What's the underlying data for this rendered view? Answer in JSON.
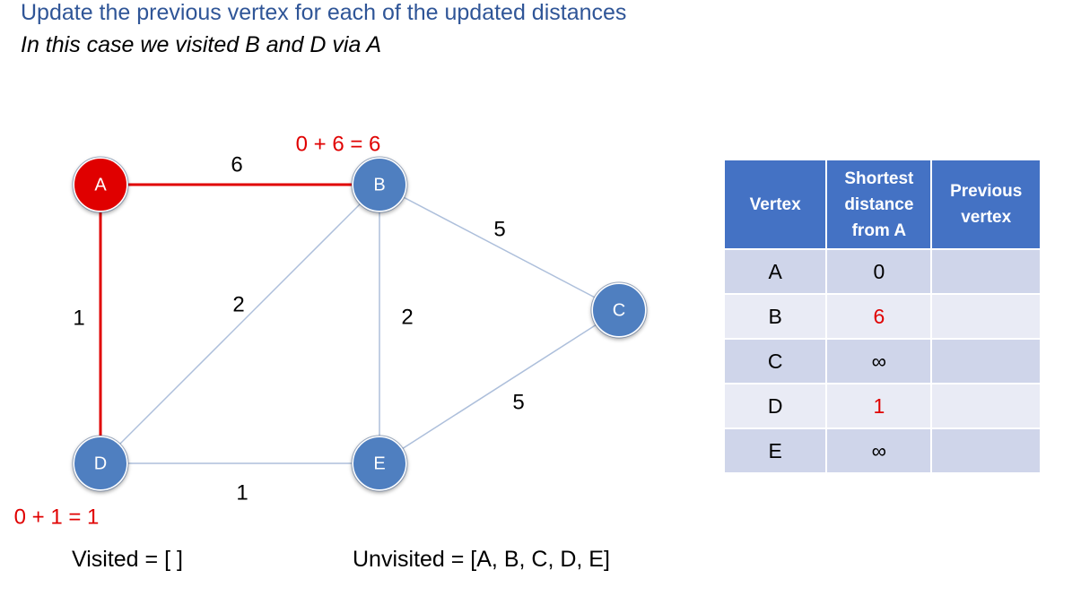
{
  "header": {
    "title": "Update the previous vertex for each of the updated distances",
    "subtitle": "In this case we visited B and D via A"
  },
  "graph": {
    "nodes": [
      {
        "id": "A",
        "label": "A",
        "color": "#e00000"
      },
      {
        "id": "B",
        "label": "B",
        "color": "#4f7fc0"
      },
      {
        "id": "C",
        "label": "C",
        "color": "#4f7fc0"
      },
      {
        "id": "D",
        "label": "D",
        "color": "#4f7fc0"
      },
      {
        "id": "E",
        "label": "E",
        "color": "#4f7fc0"
      }
    ],
    "edges": [
      {
        "from": "A",
        "to": "B",
        "weight": "6",
        "highlighted": true
      },
      {
        "from": "A",
        "to": "D",
        "weight": "1",
        "highlighted": true
      },
      {
        "from": "B",
        "to": "C",
        "weight": "5",
        "highlighted": false
      },
      {
        "from": "B",
        "to": "D",
        "weight": "2",
        "highlighted": false
      },
      {
        "from": "B",
        "to": "E",
        "weight": "2",
        "highlighted": false
      },
      {
        "from": "C",
        "to": "E",
        "weight": "5",
        "highlighted": false
      },
      {
        "from": "D",
        "to": "E",
        "weight": "1",
        "highlighted": false
      }
    ],
    "annotations": {
      "B": "0 + 6 = 6",
      "D": "0 + 1 = 1"
    }
  },
  "table": {
    "headers": [
      "Vertex",
      "Shortest distance from A",
      "Previous vertex"
    ],
    "rows": [
      {
        "vertex": "A",
        "distance": "0",
        "previous": "",
        "distance_highlight": false
      },
      {
        "vertex": "B",
        "distance": "6",
        "previous": "",
        "distance_highlight": true
      },
      {
        "vertex": "C",
        "distance": "∞",
        "previous": "",
        "distance_highlight": false
      },
      {
        "vertex": "D",
        "distance": "1",
        "previous": "",
        "distance_highlight": true
      },
      {
        "vertex": "E",
        "distance": "∞",
        "previous": "",
        "distance_highlight": false
      }
    ]
  },
  "footer": {
    "visited": "Visited = [ ]",
    "unvisited": "Unvisited = [A, B, C, D, E]"
  },
  "colors": {
    "title": "#2f5597",
    "highlight": "#e00000",
    "node": "#4f7fc0",
    "edge": "#adbfdb"
  }
}
